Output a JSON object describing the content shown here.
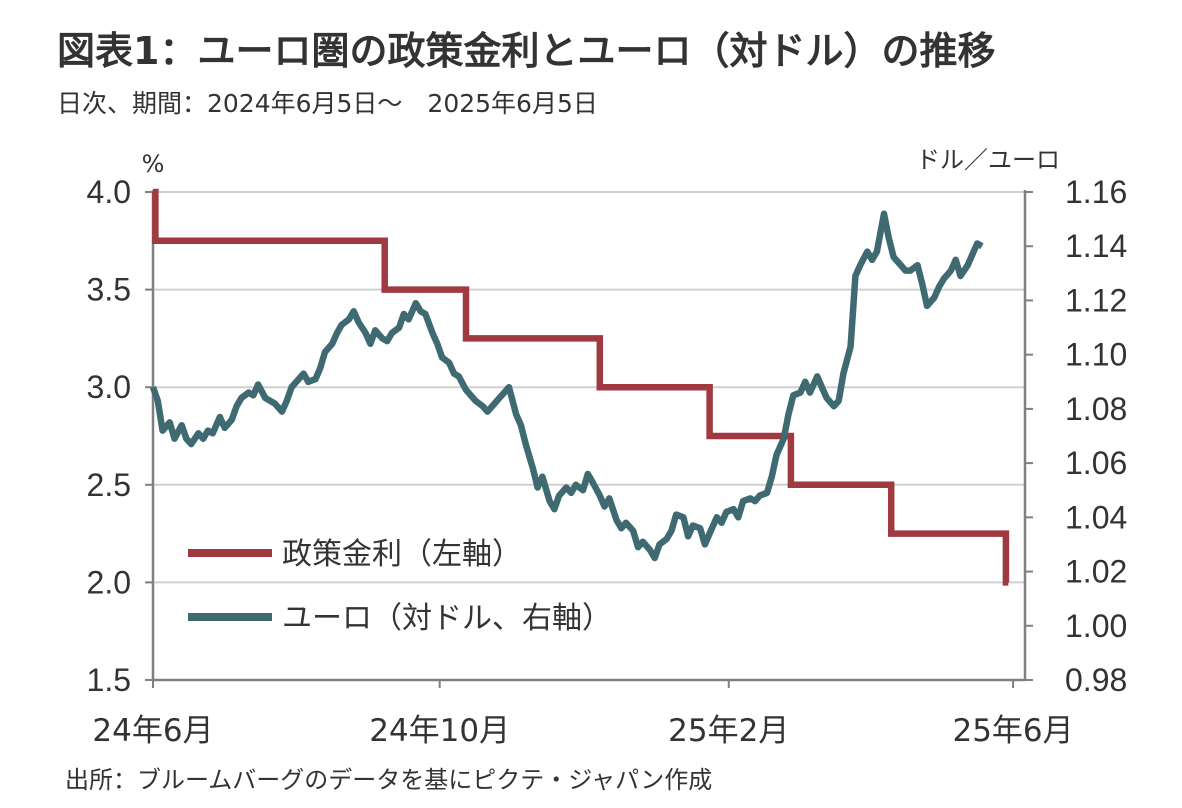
{
  "title": "図表1：ユーロ圏の政策金利とユーロ（対ドル）の推移",
  "subtitle": "日次、期間：2024年6月5日～　2025年6月5日",
  "source": "出所：ブルームバーグのデータを基にピクテ・ジャパン作成",
  "colors": {
    "rate": "#9e3a40",
    "eur": "#3f6a71",
    "grid": "#d0d0d0",
    "axis": "#808080"
  },
  "chart_data": {
    "type": "line",
    "left_axis": {
      "unit_label": "%",
      "ylim": [
        1.5,
        4.0
      ],
      "ticks": [
        "1.5",
        "2.0",
        "2.5",
        "3.0",
        "3.5",
        "4.0"
      ]
    },
    "right_axis": {
      "unit_label": "ドル／ユーロ",
      "ylim": [
        0.98,
        1.16
      ],
      "ticks": [
        "0.98",
        "1.00",
        "1.02",
        "1.04",
        "1.06",
        "1.08",
        "1.10",
        "1.12",
        "1.14",
        "1.16"
      ]
    },
    "x_axis": {
      "range": [
        0,
        365
      ],
      "tick_labels": [
        {
          "label": "24年6月",
          "x": 0
        },
        {
          "label": "24年10月",
          "x": 120
        },
        {
          "label": "25年2月",
          "x": 241
        },
        {
          "label": "25年6月",
          "x": 360
        }
      ]
    },
    "grid": true,
    "legend_position": "lower-left",
    "series": [
      {
        "name": "政策金利（左軸）",
        "axis": "left",
        "step": true,
        "points": [
          [
            0,
            4.0
          ],
          [
            1,
            3.75
          ],
          [
            97,
            3.5
          ],
          [
            131,
            3.25
          ],
          [
            187,
            3.0
          ],
          [
            233,
            2.75
          ],
          [
            267,
            2.5
          ],
          [
            309,
            2.25
          ],
          [
            357,
            2.0
          ],
          [
            358,
            2.0
          ]
        ]
      },
      {
        "name": "ユーロ（対ドル、右軸）",
        "axis": "right",
        "points": [
          [
            0,
            1.088
          ],
          [
            2,
            1.083
          ],
          [
            4,
            1.072
          ],
          [
            7,
            1.075
          ],
          [
            9,
            1.069
          ],
          [
            12,
            1.074
          ],
          [
            14,
            1.069
          ],
          [
            16,
            1.067
          ],
          [
            19,
            1.071
          ],
          [
            21,
            1.069
          ],
          [
            23,
            1.072
          ],
          [
            25,
            1.071
          ],
          [
            28,
            1.077
          ],
          [
            30,
            1.073
          ],
          [
            33,
            1.076
          ],
          [
            35,
            1.081
          ],
          [
            37,
            1.084
          ],
          [
            40,
            1.086
          ],
          [
            42,
            1.085
          ],
          [
            44,
            1.089
          ],
          [
            47,
            1.084
          ],
          [
            49,
            1.083
          ],
          [
            51,
            1.082
          ],
          [
            54,
            1.079
          ],
          [
            56,
            1.083
          ],
          [
            58,
            1.088
          ],
          [
            61,
            1.091
          ],
          [
            63,
            1.093
          ],
          [
            65,
            1.09
          ],
          [
            68,
            1.091
          ],
          [
            70,
            1.095
          ],
          [
            72,
            1.101
          ],
          [
            75,
            1.104
          ],
          [
            77,
            1.108
          ],
          [
            79,
            1.111
          ],
          [
            82,
            1.113
          ],
          [
            84,
            1.116
          ],
          [
            86,
            1.112
          ],
          [
            89,
            1.108
          ],
          [
            91,
            1.104
          ],
          [
            93,
            1.109
          ],
          [
            96,
            1.106
          ],
          [
            98,
            1.105
          ],
          [
            100,
            1.108
          ],
          [
            103,
            1.11
          ],
          [
            105,
            1.115
          ],
          [
            107,
            1.113
          ],
          [
            110,
            1.119
          ],
          [
            112,
            1.116
          ],
          [
            114,
            1.115
          ],
          [
            117,
            1.108
          ],
          [
            119,
            1.104
          ],
          [
            121,
            1.099
          ],
          [
            124,
            1.097
          ],
          [
            126,
            1.093
          ],
          [
            128,
            1.092
          ],
          [
            131,
            1.087
          ],
          [
            133,
            1.085
          ],
          [
            135,
            1.083
          ],
          [
            138,
            1.081
          ],
          [
            140,
            1.079
          ],
          [
            142,
            1.081
          ],
          [
            145,
            1.084
          ],
          [
            147,
            1.086
          ],
          [
            149,
            1.088
          ],
          [
            152,
            1.078
          ],
          [
            154,
            1.074
          ],
          [
            156,
            1.067
          ],
          [
            159,
            1.058
          ],
          [
            161,
            1.051
          ],
          [
            163,
            1.055
          ],
          [
            166,
            1.046
          ],
          [
            168,
            1.043
          ],
          [
            170,
            1.048
          ],
          [
            173,
            1.051
          ],
          [
            175,
            1.049
          ],
          [
            177,
            1.052
          ],
          [
            180,
            1.05
          ],
          [
            182,
            1.056
          ],
          [
            184,
            1.053
          ],
          [
            187,
            1.048
          ],
          [
            189,
            1.044
          ],
          [
            191,
            1.047
          ],
          [
            194,
            1.039
          ],
          [
            196,
            1.036
          ],
          [
            198,
            1.038
          ],
          [
            201,
            1.035
          ],
          [
            203,
            1.029
          ],
          [
            205,
            1.031
          ],
          [
            208,
            1.028
          ],
          [
            210,
            1.025
          ],
          [
            212,
            1.03
          ],
          [
            215,
            1.032
          ],
          [
            217,
            1.035
          ],
          [
            219,
            1.041
          ],
          [
            222,
            1.04
          ],
          [
            224,
            1.033
          ],
          [
            226,
            1.037
          ],
          [
            229,
            1.036
          ],
          [
            231,
            1.03
          ],
          [
            233,
            1.034
          ],
          [
            236,
            1.04
          ],
          [
            238,
            1.038
          ],
          [
            240,
            1.042
          ],
          [
            243,
            1.043
          ],
          [
            245,
            1.04
          ],
          [
            247,
            1.046
          ],
          [
            250,
            1.047
          ],
          [
            252,
            1.046
          ],
          [
            254,
            1.048
          ],
          [
            257,
            1.049
          ],
          [
            259,
            1.055
          ],
          [
            261,
            1.063
          ],
          [
            264,
            1.069
          ],
          [
            266,
            1.078
          ],
          [
            268,
            1.085
          ],
          [
            271,
            1.086
          ],
          [
            273,
            1.09
          ],
          [
            275,
            1.086
          ],
          [
            278,
            1.092
          ],
          [
            280,
            1.088
          ],
          [
            282,
            1.084
          ],
          [
            285,
            1.081
          ],
          [
            287,
            1.083
          ],
          [
            289,
            1.093
          ],
          [
            292,
            1.103
          ],
          [
            294,
            1.129
          ],
          [
            296,
            1.133
          ],
          [
            299,
            1.138
          ],
          [
            301,
            1.135
          ],
          [
            303,
            1.138
          ],
          [
            306,
            1.152
          ],
          [
            308,
            1.143
          ],
          [
            310,
            1.136
          ],
          [
            313,
            1.133
          ],
          [
            315,
            1.131
          ],
          [
            317,
            1.131
          ],
          [
            320,
            1.133
          ],
          [
            322,
            1.126
          ],
          [
            324,
            1.118
          ],
          [
            327,
            1.121
          ],
          [
            329,
            1.125
          ],
          [
            331,
            1.128
          ],
          [
            334,
            1.131
          ],
          [
            336,
            1.135
          ],
          [
            338,
            1.129
          ],
          [
            341,
            1.133
          ],
          [
            343,
            1.137
          ],
          [
            345,
            1.141
          ],
          [
            347,
            1.14
          ]
        ]
      }
    ]
  }
}
